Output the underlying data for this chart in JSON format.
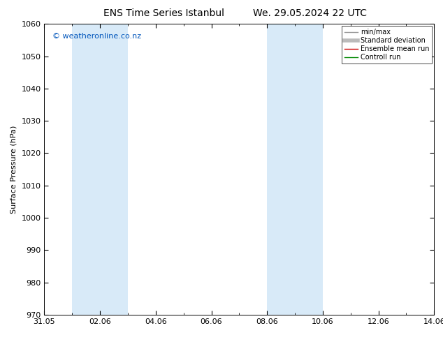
{
  "title_left": "ENS Time Series Istanbul",
  "title_right": "We. 29.05.2024 22 UTC",
  "ylabel": "Surface Pressure (hPa)",
  "ylim": [
    970,
    1060
  ],
  "yticks": [
    970,
    980,
    990,
    1000,
    1010,
    1020,
    1030,
    1040,
    1050,
    1060
  ],
  "xlim": [
    0,
    14
  ],
  "xtick_labels": [
    "31.05",
    "02.06",
    "04.06",
    "06.06",
    "08.06",
    "10.06",
    "12.06",
    "14.06"
  ],
  "xtick_positions_days": [
    0,
    2,
    4,
    6,
    8,
    10,
    12,
    14
  ],
  "shaded_bands": [
    {
      "start_day": 1.0,
      "end_day": 3.0
    },
    {
      "start_day": 8.0,
      "end_day": 10.0
    }
  ],
  "shade_color": "#d8eaf8",
  "watermark": "© weatheronline.co.nz",
  "legend_entries": [
    {
      "label": "min/max",
      "color": "#999999",
      "lw": 1.0
    },
    {
      "label": "Standard deviation",
      "color": "#bbbbbb",
      "lw": 4.0
    },
    {
      "label": "Ensemble mean run",
      "color": "#cc0000",
      "lw": 1.0
    },
    {
      "label": "Controll run",
      "color": "#008800",
      "lw": 1.0
    }
  ],
  "bg_color": "#ffffff",
  "plot_bg_color": "#ffffff",
  "title_fontsize": 10,
  "label_fontsize": 8,
  "tick_fontsize": 8,
  "ylabel_fontsize": 8,
  "watermark_fontsize": 8
}
